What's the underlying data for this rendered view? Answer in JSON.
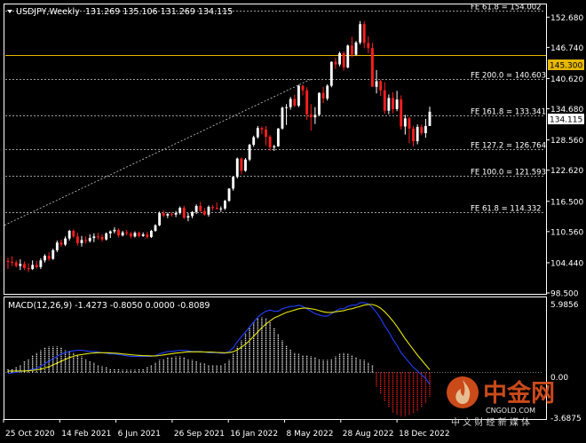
{
  "header": {
    "symbol": "USDJPY,Weekly",
    "ohlc": "131.269 135.106 131.269 134.115",
    "menu_icon": "triangle-down-icon"
  },
  "macd": {
    "label": "MACD(12,26,9) -1.4273 -0.8050 0.0000 -0.8089",
    "axis_top": "5.9856",
    "axis_zero": "0.00",
    "axis_bottom": "-3.6875"
  },
  "watermark": {
    "brand": "中金网",
    "slogan": "中 文 财 经 新 媒 体",
    "url": "CNGOLD.COM",
    "logo_icon": "flame-logo-icon"
  },
  "colors": {
    "background": "#000000",
    "bull": "#ffffff",
    "bear": "#ff1e1e",
    "grid": "#ffffff",
    "price_line": "#e6b800",
    "macd_signal": "#e6e600",
    "macd_line": "#2040ff",
    "histogram_pos": "#ffffff",
    "histogram_neg": "#ff1e1e"
  },
  "chart_data": [
    {
      "type": "candlestick",
      "title": "USDJPY,Weekly",
      "x_labels": [
        "25 Oct 2020",
        "14 Feb 2021",
        "6 Jun 2021",
        "26 Sep 2021",
        "16 Jan 2022",
        "8 May 2022",
        "28 Aug 2022",
        "18 Dec 2022"
      ],
      "y_ticks": [
        "152.680",
        "146.740",
        "140.620",
        "134.680",
        "128.560",
        "122.620",
        "116.500",
        "110.560",
        "104.440",
        "98.500"
      ],
      "ylim": [
        98.5,
        155.0
      ],
      "current_price": "134.115",
      "marked_level": "145.300",
      "fibonacci_levels": [
        {
          "label": "FE 61.8 = 154.002",
          "value": 154.002
        },
        {
          "label": "FE 200.0 = 140.603",
          "value": 140.603
        },
        {
          "label": "FE 161.8 = 133.341",
          "value": 133.341
        },
        {
          "label": "FE 127.2 = 126.764",
          "value": 126.764
        },
        {
          "label": "FE 100.0 = 121.593",
          "value": 121.593
        },
        {
          "label": "FE 61.8 = 114.332",
          "value": 114.332
        }
      ],
      "trendline": {
        "from": {
          "bar": 0,
          "price": 111.8
        },
        "to": {
          "bar": 74,
          "price": 140.5
        }
      },
      "ohlc": [
        [
          104.8,
          105.4,
          103.2,
          104.6
        ],
        [
          104.6,
          105.7,
          103.8,
          104.5
        ],
        [
          104.5,
          104.9,
          103.5,
          103.8
        ],
        [
          103.8,
          105.1,
          103.0,
          104.2
        ],
        [
          104.2,
          104.7,
          103.0,
          103.4
        ],
        [
          103.4,
          104.3,
          102.6,
          103.2
        ],
        [
          103.2,
          104.9,
          103.0,
          104.0
        ],
        [
          104.0,
          104.8,
          103.3,
          103.6
        ],
        [
          103.6,
          105.3,
          103.2,
          104.9
        ],
        [
          104.9,
          106.1,
          104.5,
          105.8
        ],
        [
          105.8,
          106.5,
          104.8,
          105.2
        ],
        [
          105.2,
          107.2,
          105.0,
          106.9
        ],
        [
          106.9,
          108.8,
          106.5,
          108.4
        ],
        [
          108.4,
          109.0,
          107.6,
          108.0
        ],
        [
          108.0,
          109.6,
          107.7,
          109.2
        ],
        [
          109.2,
          110.9,
          108.8,
          110.7
        ],
        [
          110.7,
          111.0,
          109.3,
          109.6
        ],
        [
          109.6,
          110.3,
          107.8,
          108.3
        ],
        [
          108.3,
          109.7,
          107.6,
          108.9
        ],
        [
          108.9,
          109.6,
          108.2,
          108.7
        ],
        [
          108.7,
          110.0,
          108.4,
          109.3
        ],
        [
          109.3,
          110.2,
          108.5,
          109.6
        ],
        [
          109.6,
          110.3,
          109.0,
          109.5
        ],
        [
          109.5,
          110.0,
          108.6,
          109.0
        ],
        [
          109.0,
          110.4,
          108.8,
          110.2
        ],
        [
          110.2,
          110.8,
          109.3,
          110.6
        ],
        [
          110.6,
          111.4,
          110.2,
          110.9
        ],
        [
          110.9,
          111.2,
          109.4,
          109.8
        ],
        [
          109.8,
          110.7,
          109.6,
          110.4
        ],
        [
          110.4,
          110.9,
          109.8,
          110.2
        ],
        [
          110.2,
          110.5,
          109.2,
          109.6
        ],
        [
          109.6,
          110.6,
          109.4,
          110.3
        ],
        [
          110.3,
          110.6,
          109.4,
          109.7
        ],
        [
          109.7,
          110.4,
          109.5,
          110.0
        ],
        [
          110.0,
          110.5,
          109.2,
          109.5
        ],
        [
          109.5,
          110.9,
          109.3,
          110.7
        ],
        [
          110.7,
          112.0,
          110.5,
          111.8
        ],
        [
          111.8,
          114.5,
          111.6,
          114.2
        ],
        [
          114.2,
          114.7,
          113.4,
          113.7
        ],
        [
          113.7,
          114.3,
          113.2,
          114.0
        ],
        [
          114.0,
          114.4,
          113.5,
          113.9
        ],
        [
          113.9,
          114.6,
          113.4,
          114.2
        ],
        [
          114.2,
          115.5,
          113.9,
          115.2
        ],
        [
          115.2,
          115.6,
          113.0,
          113.3
        ],
        [
          113.3,
          114.2,
          112.6,
          113.6
        ],
        [
          113.6,
          114.6,
          113.2,
          114.4
        ],
        [
          114.4,
          115.9,
          114.0,
          115.6
        ],
        [
          115.6,
          116.4,
          114.4,
          114.6
        ],
        [
          114.6,
          115.2,
          113.7,
          113.9
        ],
        [
          113.9,
          115.7,
          113.5,
          115.4
        ],
        [
          115.4,
          115.8,
          114.7,
          115.2
        ],
        [
          115.2,
          116.3,
          114.9,
          115.0
        ],
        [
          115.0,
          115.5,
          114.4,
          115.1
        ],
        [
          115.1,
          116.8,
          114.8,
          116.6
        ],
        [
          116.6,
          119.1,
          116.4,
          119.0
        ],
        [
          119.0,
          121.4,
          118.6,
          121.3
        ],
        [
          121.3,
          125.1,
          121.0,
          124.9
        ],
        [
          124.9,
          125.1,
          121.8,
          122.5
        ],
        [
          122.5,
          125.0,
          122.3,
          124.7
        ],
        [
          124.7,
          127.8,
          124.4,
          127.6
        ],
        [
          127.6,
          129.4,
          127.2,
          129.1
        ],
        [
          129.1,
          131.3,
          128.8,
          130.9
        ],
        [
          130.9,
          131.2,
          129.7,
          130.6
        ],
        [
          130.6,
          131.3,
          127.5,
          129.2
        ],
        [
          129.2,
          129.5,
          126.4,
          127.1
        ],
        [
          127.1,
          127.6,
          126.4,
          127.3
        ],
        [
          127.3,
          130.9,
          127.2,
          130.8
        ],
        [
          130.8,
          135.1,
          130.6,
          134.9
        ],
        [
          134.9,
          135.6,
          131.5,
          135.0
        ],
        [
          135.0,
          137.0,
          134.5,
          136.6
        ],
        [
          136.6,
          137.4,
          135.0,
          135.3
        ],
        [
          135.3,
          139.4,
          135.0,
          139.2
        ],
        [
          139.2,
          139.4,
          137.3,
          138.3
        ],
        [
          138.3,
          138.9,
          132.5,
          133.6
        ],
        [
          133.6,
          135.6,
          130.4,
          133.0
        ],
        [
          133.0,
          135.0,
          131.7,
          133.5
        ],
        [
          133.5,
          137.9,
          133.2,
          137.8
        ],
        [
          137.8,
          139.0,
          135.8,
          136.7
        ],
        [
          136.7,
          139.5,
          136.3,
          139.2
        ],
        [
          139.2,
          144.0,
          138.9,
          143.9
        ],
        [
          143.9,
          144.7,
          142.5,
          143.4
        ],
        [
          143.4,
          145.9,
          143.0,
          145.6
        ],
        [
          145.6,
          145.9,
          142.2,
          142.8
        ],
        [
          142.8,
          147.3,
          142.6,
          147.1
        ],
        [
          147.1,
          148.8,
          144.8,
          145.3
        ],
        [
          145.3,
          148.0,
          145.1,
          147.7
        ],
        [
          147.7,
          151.9,
          147.3,
          151.3
        ],
        [
          151.3,
          151.9,
          146.6,
          147.6
        ],
        [
          147.6,
          148.9,
          145.6,
          146.6
        ],
        [
          146.6,
          147.6,
          139.4,
          139.0
        ],
        [
          139.0,
          142.3,
          137.7,
          140.1
        ],
        [
          140.1,
          140.4,
          137.2,
          138.3
        ],
        [
          138.3,
          139.9,
          133.7,
          134.3
        ],
        [
          134.3,
          137.5,
          133.6,
          136.8
        ],
        [
          136.8,
          137.9,
          133.8,
          134.6
        ],
        [
          134.6,
          138.2,
          134.2,
          136.5
        ],
        [
          136.5,
          137.3,
          130.6,
          131.2
        ],
        [
          131.2,
          133.5,
          129.6,
          132.8
        ],
        [
          132.8,
          133.1,
          127.9,
          130.8
        ],
        [
          130.8,
          131.3,
          127.3,
          128.3
        ],
        [
          128.3,
          131.6,
          127.7,
          131.1
        ],
        [
          131.1,
          131.6,
          129.5,
          129.9
        ],
        [
          129.9,
          132.7,
          129.0,
          131.3
        ],
        [
          131.3,
          135.1,
          131.3,
          134.1
        ]
      ]
    },
    {
      "type": "histogram",
      "title": "MACD(12,26,9)",
      "ylim": [
        -3.6875,
        5.9856
      ],
      "zero_level": 0.0,
      "main_values": [
        -0.1,
        -0.05,
        0.0,
        0.05,
        0.1,
        0.15,
        0.25,
        0.3,
        0.5,
        0.7,
        0.9,
        1.1,
        1.3,
        1.5,
        1.6,
        1.7,
        1.75,
        1.8,
        1.8,
        1.75,
        1.7,
        1.7,
        1.65,
        1.6,
        1.55,
        1.5,
        1.5,
        1.45,
        1.4,
        1.35,
        1.3,
        1.3,
        1.3,
        1.3,
        1.3,
        1.3,
        1.35,
        1.5,
        1.6,
        1.7,
        1.7,
        1.75,
        1.8,
        1.8,
        1.75,
        1.7,
        1.7,
        1.7,
        1.65,
        1.6,
        1.6,
        1.6,
        1.55,
        1.55,
        1.7,
        2.0,
        2.5,
        2.9,
        3.3,
        3.7,
        4.1,
        4.5,
        4.8,
        5.0,
        5.1,
        5.0,
        5.0,
        5.2,
        5.3,
        5.4,
        5.4,
        5.5,
        5.4,
        5.2,
        5.0,
        4.8,
        4.7,
        4.6,
        4.6,
        4.8,
        5.0,
        5.2,
        5.2,
        5.4,
        5.5,
        5.5,
        5.7,
        5.7,
        5.6,
        5.3,
        4.9,
        4.4,
        3.8,
        3.3,
        2.7,
        2.2,
        1.6,
        1.2,
        0.8,
        0.4,
        0.1,
        -0.2,
        -0.5,
        -1.0
      ],
      "signal_values": [
        0.1,
        0.1,
        0.1,
        0.1,
        0.1,
        0.12,
        0.15,
        0.2,
        0.25,
        0.35,
        0.45,
        0.6,
        0.75,
        0.9,
        1.05,
        1.2,
        1.3,
        1.4,
        1.45,
        1.5,
        1.55,
        1.58,
        1.6,
        1.6,
        1.6,
        1.58,
        1.56,
        1.54,
        1.5,
        1.47,
        1.43,
        1.4,
        1.38,
        1.36,
        1.35,
        1.34,
        1.34,
        1.37,
        1.42,
        1.47,
        1.52,
        1.57,
        1.6,
        1.64,
        1.67,
        1.67,
        1.67,
        1.67,
        1.66,
        1.65,
        1.64,
        1.62,
        1.61,
        1.6,
        1.61,
        1.68,
        1.83,
        2.05,
        2.3,
        2.6,
        2.95,
        3.3,
        3.65,
        3.95,
        4.2,
        4.45,
        4.6,
        4.75,
        4.9,
        5.0,
        5.1,
        5.2,
        5.25,
        5.25,
        5.2,
        5.15,
        5.05,
        4.95,
        4.9,
        4.9,
        4.95,
        5.0,
        5.05,
        5.15,
        5.2,
        5.3,
        5.4,
        5.5,
        5.55,
        5.55,
        5.45,
        5.25,
        4.95,
        4.6,
        4.2,
        3.75,
        3.25,
        2.75,
        2.3,
        1.85,
        1.4,
        1.0,
        0.6,
        0.2
      ],
      "histogram_values": [
        0.3,
        0.3,
        0.4,
        0.6,
        0.9,
        1.1,
        1.4,
        1.6,
        1.8,
        2.0,
        2.1,
        2.1,
        2.1,
        2.0,
        1.8,
        1.7,
        1.6,
        1.4,
        1.3,
        1.1,
        0.9,
        0.8,
        0.6,
        0.5,
        0.4,
        0.3,
        0.3,
        0.3,
        0.2,
        0.2,
        0.2,
        0.2,
        0.3,
        0.3,
        0.4,
        0.6,
        0.8,
        1.0,
        1.1,
        1.2,
        1.2,
        1.3,
        1.3,
        1.2,
        1.1,
        1.0,
        0.9,
        0.8,
        0.7,
        0.6,
        0.6,
        0.6,
        0.6,
        0.7,
        1.0,
        1.5,
        2.1,
        2.6,
        3.2,
        3.7,
        4.1,
        4.4,
        4.5,
        4.4,
        4.1,
        3.6,
        3.1,
        2.6,
        2.2,
        1.9,
        1.6,
        1.5,
        1.4,
        1.4,
        1.3,
        1.2,
        1.1,
        1.0,
        1.0,
        1.1,
        1.3,
        1.5,
        1.6,
        1.5,
        1.4,
        1.2,
        1.1,
        1.0,
        0.8,
        0.6,
        -1.2,
        -1.8,
        -2.4,
        -2.9,
        -3.3,
        -3.5,
        -3.6,
        -3.6,
        -3.5,
        -3.4,
        -3.2,
        -2.9,
        -2.5,
        -2.0
      ]
    }
  ]
}
